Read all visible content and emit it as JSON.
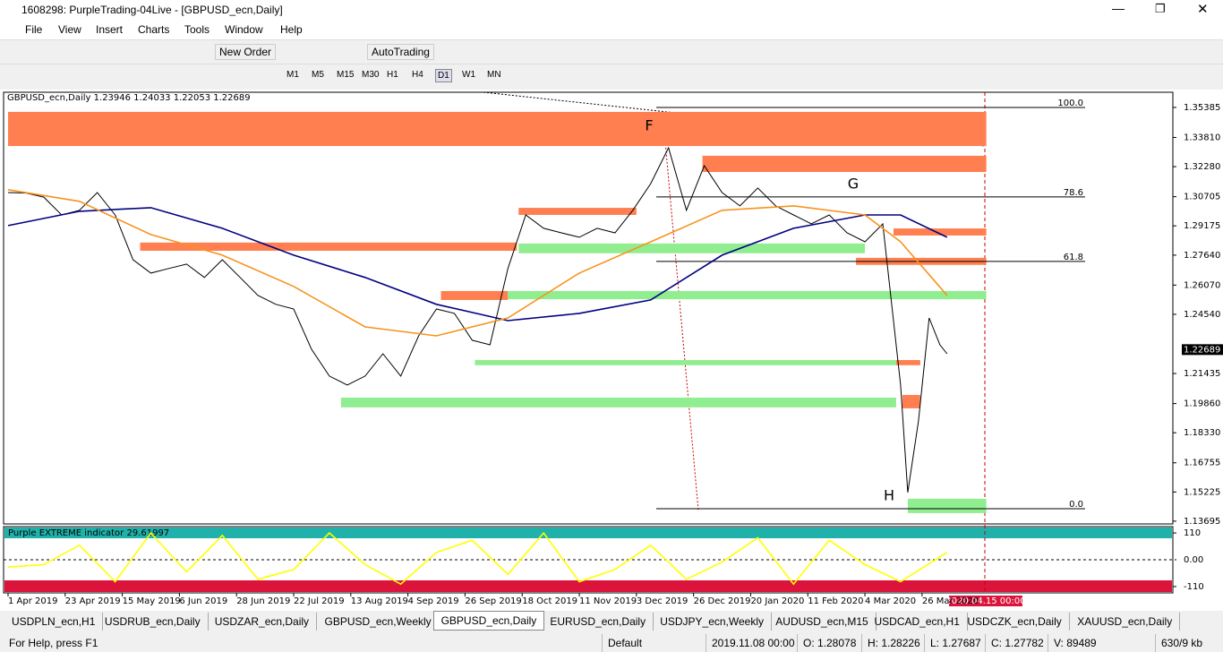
{
  "window": {
    "title": "1608298: PurpleTrading-04Live - [GBPUSD_ecn,Daily]"
  },
  "menu": [
    "File",
    "View",
    "Insert",
    "Charts",
    "Tools",
    "Window",
    "Help"
  ],
  "toolbar": {
    "new_order": "New Order",
    "auto_trading": "AutoTrading",
    "timeframes": [
      "M1",
      "M5",
      "M15",
      "M30",
      "H1",
      "H4",
      "D1",
      "W1",
      "MN"
    ]
  },
  "chart_header": "GBPUSD_ecn,Daily  1.23946 1.24033 1.22053 1.22689",
  "cursor_time": "2020.04.15 00:00",
  "tabs": [
    "USDPLN_ecn,H1",
    "USDRUB_ecn,Daily",
    "USDZAR_ecn,Daily",
    "GBPUSD_ecn,Weekly",
    "GBPUSD_ecn,Daily",
    "EURUSD_ecn,Daily",
    "USDJPY_ecn,Weekly",
    "AUDUSD_ecn,M15",
    "USDCAD_ecn,H1",
    "USDCZK_ecn,Daily",
    "XAUUSD_ecn,Daily"
  ],
  "status": {
    "help": "For Help, press F1",
    "profile": "Default",
    "time": "2019.11.08 00:00",
    "open": "O: 1.28078",
    "high": "H: 1.28226",
    "low": "L: 1.27687",
    "close": "C: 1.27782",
    "volume": "V: 89489",
    "traffic": "630/9 kb"
  },
  "chart_data": [
    {
      "type": "line",
      "xlim": [
        -1.25,
        326.25
      ],
      "ylim": [
        1.1355,
        1.3618
      ],
      "xticks": [
        {
          "value": 0,
          "label": "1 Apr 2019"
        },
        {
          "value": 16,
          "label": "23 Apr 2019"
        },
        {
          "value": 32,
          "label": "15 May 2019"
        },
        {
          "value": 48,
          "label": "6 Jun 2019"
        },
        {
          "value": 64,
          "label": "28 Jun 2019"
        },
        {
          "value": 80,
          "label": "22 Jul 2019"
        },
        {
          "value": 96,
          "label": "13 Aug 2019"
        },
        {
          "value": 112,
          "label": "4 Sep 2019"
        },
        {
          "value": 128,
          "label": "26 Sep 2019"
        },
        {
          "value": 144,
          "label": "18 Oct 2019"
        },
        {
          "value": 160,
          "label": "11 Nov 2019"
        },
        {
          "value": 176,
          "label": "3 Dec 2019"
        },
        {
          "value": 192,
          "label": "26 Dec 2019"
        },
        {
          "value": 208,
          "label": "20 Jan 2020"
        },
        {
          "value": 224,
          "label": "11 Feb 2020"
        },
        {
          "value": 240,
          "label": "4 Mar 2020"
        },
        {
          "value": 256,
          "label": "26 Mar 2020"
        }
      ],
      "yticks": [
        1.35385,
        {
          "value": 1.3381,
          "label": "1.33810"
        },
        {
          "value": 1.3228,
          "label": "1.32280"
        },
        1.30705,
        1.29175,
        {
          "value": 1.2764,
          "label": "1.27640"
        },
        {
          "value": 1.2607,
          "label": "1.26070"
        },
        {
          "value": 1.2454,
          "label": "1.24540"
        },
        1.21435,
        {
          "value": 1.1986,
          "label": "1.19860"
        },
        {
          "value": 1.1833,
          "label": "1.18330"
        },
        1.16755,
        1.15225,
        1.13695
      ],
      "last_price": 1.22689,
      "series": [
        {
          "name": "GBPUSD_ecn",
          "color": "#000000",
          "x": [
            0,
            5,
            10,
            15,
            20,
            25,
            30,
            35,
            40,
            45,
            50,
            55,
            60,
            65,
            70,
            75,
            80,
            85,
            90,
            95,
            100,
            105,
            110,
            115,
            120,
            125,
            130,
            135,
            140,
            145,
            150,
            155,
            160,
            165,
            170,
            175,
            180,
            185,
            190,
            195,
            200,
            205,
            210,
            215,
            220,
            225,
            230,
            235,
            240,
            245,
            250,
            252,
            255,
            258,
            261,
            263
          ],
          "values": [
            1.3092,
            1.309,
            1.3068,
            1.2975,
            1.2999,
            1.3092,
            1.2975,
            1.274,
            1.267,
            1.2694,
            1.2717,
            1.2647,
            1.274,
            1.2647,
            1.2553,
            1.2506,
            1.2482,
            1.2271,
            1.213,
            1.2083,
            1.213,
            1.2247,
            1.213,
            1.2341,
            1.2482,
            1.2459,
            1.2318,
            1.2294,
            1.2694,
            1.2975,
            1.2905,
            1.2881,
            1.2858,
            1.2905,
            1.2881,
            1.2999,
            1.3139,
            1.3327,
            1.2999,
            1.3233,
            1.3092,
            1.3022,
            1.3116,
            1.3022,
            1.2975,
            1.2928,
            1.2975,
            1.2881,
            1.2834,
            1.2928,
            1.2083,
            1.152,
            1.1896,
            1.2435,
            1.2294,
            1.2247
          ]
        },
        {
          "name": "MA slow",
          "color": "#000080",
          "x": [
            0,
            20,
            40,
            60,
            80,
            100,
            120,
            140,
            160,
            180,
            200,
            220,
            240,
            250,
            263
          ],
          "values": [
            1.2919,
            1.2994,
            1.3013,
            1.2905,
            1.2764,
            1.2647,
            1.2506,
            1.2421,
            1.2459,
            1.2529,
            1.2764,
            1.2905,
            1.2975,
            1.2975,
            1.2858
          ]
        },
        {
          "name": "MA fast",
          "color": "#f7931e",
          "x": [
            0,
            20,
            40,
            60,
            80,
            100,
            120,
            140,
            160,
            180,
            200,
            220,
            240,
            250,
            263
          ],
          "values": [
            1.3107,
            1.3046,
            1.2872,
            1.2764,
            1.26,
            1.2388,
            1.2341,
            1.2435,
            1.267,
            1.2834,
            1.2999,
            1.3022,
            1.2975,
            1.2834,
            1.2553
          ]
        }
      ],
      "zones": [
        {
          "x": [
            0,
            274
          ],
          "y": [
            1.3336,
            1.3515
          ],
          "color": "#ff7f50"
        },
        {
          "x": [
            194.5,
            274
          ],
          "y": [
            1.32,
            1.3285
          ],
          "color": "#ff7f50"
        },
        {
          "x": [
            143,
            176
          ],
          "y": [
            1.2975,
            1.3012
          ],
          "color": "#ff7f50"
        },
        {
          "x": [
            143,
            240
          ],
          "y": [
            1.2774,
            1.2825
          ],
          "color": "#90ee90"
        },
        {
          "x": [
            37,
            142.5
          ],
          "y": [
            1.2787,
            1.283
          ],
          "color": "#ff7f50"
        },
        {
          "x": [
            248,
            274
          ],
          "y": [
            1.2867,
            1.2904
          ],
          "color": "#ff7f50"
        },
        {
          "x": [
            237.5,
            274
          ],
          "y": [
            1.2713,
            1.275
          ],
          "color": "#ff7f50"
        },
        {
          "x": [
            121.25,
            140
          ],
          "y": [
            1.2529,
            1.2576
          ],
          "color": "#ff7f50"
        },
        {
          "x": [
            140,
            274
          ],
          "y": [
            1.2533,
            1.2576
          ],
          "color": "#90ee90"
        },
        {
          "x": [
            130.75,
            248.75
          ],
          "y": [
            1.2187,
            1.2214
          ],
          "color": "#90ee90"
        },
        {
          "x": [
            248.75,
            255.5
          ],
          "y": [
            1.2187,
            1.2214
          ],
          "color": "#ff7f50"
        },
        {
          "x": [
            93.25,
            248.75
          ],
          "y": [
            1.1966,
            1.2017
          ],
          "color": "#90ee90"
        },
        {
          "x": [
            250.5,
            255.5
          ],
          "y": [
            1.1961,
            1.2031
          ],
          "color": "#ff7f50"
        },
        {
          "x": [
            252,
            274
          ],
          "y": [
            1.1412,
            1.1487
          ],
          "color": "#90ee90"
        }
      ],
      "fib_levels": [
        {
          "value": 1.3538,
          "label": "100.0"
        },
        {
          "value": 1.3069,
          "label": "78.6"
        },
        {
          "value": 1.2731,
          "label": "61.8"
        },
        {
          "value": 1.1435,
          "label": "0.0"
        }
      ],
      "annotations": [
        "F",
        "G",
        "H"
      ]
    },
    {
      "type": "line",
      "title": "Purple EXTREME indicator 29.61997",
      "ylim": [
        -136,
        136
      ],
      "xlim": [
        -1.25,
        326.25
      ],
      "yticks": [
        110,
        {
          "value": 0,
          "label": "0.00"
        },
        -110
      ],
      "series": [
        {
          "name": "Purple EXTREME",
          "color": "#ffff00",
          "x": [
            0,
            10,
            20,
            30,
            40,
            50,
            60,
            70,
            80,
            90,
            100,
            110,
            120,
            130,
            140,
            150,
            160,
            170,
            180,
            190,
            200,
            210,
            220,
            230,
            240,
            250,
            263
          ],
          "values": [
            -30,
            -20,
            60,
            -90,
            110,
            -50,
            100,
            -80,
            -40,
            110,
            -20,
            -100,
            30,
            80,
            -60,
            110,
            -90,
            -40,
            60,
            -80,
            -10,
            90,
            -100,
            80,
            -20,
            -90,
            30
          ]
        }
      ]
    }
  ]
}
